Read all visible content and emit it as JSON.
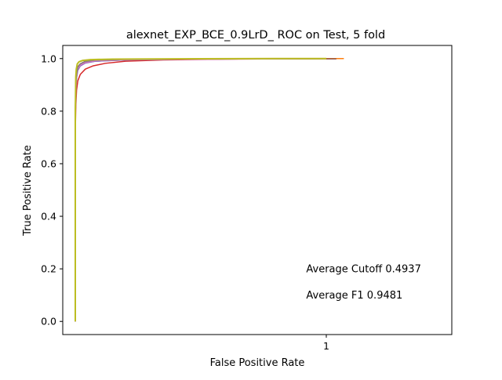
{
  "chart_data": {
    "type": "line",
    "title": "alexnet_EXP_BCE_0.9LrD_ ROC on Test, 5 fold",
    "xlabel": "False Positive Rate",
    "ylabel": "True Positive Rate",
    "xlim": [
      -0.05,
      1.5
    ],
    "ylim": [
      -0.05,
      1.05
    ],
    "xticks": [
      {
        "value": 1,
        "label": "1"
      }
    ],
    "yticks": [
      {
        "value": 0.0,
        "label": "0.0"
      },
      {
        "value": 0.2,
        "label": "0.2"
      },
      {
        "value": 0.4,
        "label": "0.4"
      },
      {
        "value": 0.6,
        "label": "0.6"
      },
      {
        "value": 0.8,
        "label": "0.8"
      },
      {
        "value": 1.0,
        "label": "1.0"
      }
    ],
    "grid": false,
    "annotations": [
      {
        "text": "Average Cutoff 0.4937",
        "x": 0.92,
        "y": 0.2
      },
      {
        "text": "Average F1 0.9481",
        "x": 0.92,
        "y": 0.1
      }
    ],
    "series": [
      {
        "color": "#1f77b4",
        "x": [
          0,
          0,
          0.002,
          0.005,
          0.01,
          0.02,
          0.04,
          0.08,
          0.2,
          0.5,
          1.0
        ],
        "y": [
          0,
          0.75,
          0.88,
          0.93,
          0.96,
          0.975,
          0.985,
          0.99,
          0.995,
          0.998,
          1.0
        ]
      },
      {
        "color": "#ff7f0e",
        "x": [
          0,
          0,
          0.002,
          0.005,
          0.01,
          0.02,
          0.04,
          0.08,
          0.2,
          0.5,
          1.0,
          1.07
        ],
        "y": [
          0,
          0.8,
          0.9,
          0.95,
          0.97,
          0.98,
          0.99,
          0.994,
          0.997,
          0.999,
          1.0,
          1.0
        ]
      },
      {
        "color": "#2ca02c",
        "x": [
          0,
          0,
          0.002,
          0.005,
          0.01,
          0.02,
          0.04,
          0.08,
          0.2,
          0.5,
          1.0
        ],
        "y": [
          0,
          0.78,
          0.89,
          0.94,
          0.965,
          0.978,
          0.988,
          0.993,
          0.996,
          0.999,
          1.0
        ]
      },
      {
        "color": "#d62728",
        "x": [
          0,
          0,
          0.002,
          0.005,
          0.01,
          0.02,
          0.04,
          0.07,
          0.12,
          0.2,
          0.35,
          0.6,
          1.0
        ],
        "y": [
          0,
          0.72,
          0.82,
          0.88,
          0.915,
          0.94,
          0.96,
          0.972,
          0.982,
          0.99,
          0.995,
          0.998,
          1.0
        ]
      },
      {
        "color": "#9467bd",
        "x": [
          0,
          0,
          0.002,
          0.005,
          0.01,
          0.02,
          0.04,
          0.08,
          0.2,
          0.5,
          1.0
        ],
        "y": [
          0,
          0.77,
          0.87,
          0.925,
          0.955,
          0.972,
          0.983,
          0.99,
          0.995,
          0.998,
          1.0
        ]
      },
      {
        "color": "#8c564b",
        "x": [
          0,
          0,
          0.002,
          0.005,
          0.01,
          0.02,
          0.04,
          0.08,
          0.2,
          0.5,
          0.92,
          1.04
        ],
        "y": [
          0,
          0.79,
          0.9,
          0.945,
          0.968,
          0.98,
          0.99,
          0.994,
          0.997,
          0.999,
          0.999,
          0.999
        ]
      },
      {
        "color": "#e377c2",
        "x": [
          0,
          0,
          0.002,
          0.005,
          0.01,
          0.02,
          0.04,
          0.08,
          0.2,
          0.5,
          1.0
        ],
        "y": [
          0,
          0.76,
          0.88,
          0.935,
          0.962,
          0.976,
          0.986,
          0.992,
          0.996,
          0.998,
          1.0
        ]
      },
      {
        "color": "#7f7f7f",
        "x": [
          0,
          0,
          0.002,
          0.005,
          0.01,
          0.02,
          0.04,
          0.08,
          0.2,
          0.5,
          1.0
        ],
        "y": [
          0,
          0.78,
          0.9,
          0.94,
          0.967,
          0.98,
          0.989,
          0.994,
          0.997,
          0.999,
          1.0
        ]
      },
      {
        "color": "#bcbd22",
        "x": [
          0,
          0,
          0.002,
          0.004,
          0.008,
          0.015,
          0.03,
          0.06,
          0.15,
          0.4,
          0.8,
          1.0
        ],
        "y": [
          0,
          0.8,
          0.93,
          0.96,
          0.98,
          0.988,
          0.993,
          0.996,
          0.998,
          0.999,
          1.0,
          1.0
        ]
      }
    ]
  }
}
